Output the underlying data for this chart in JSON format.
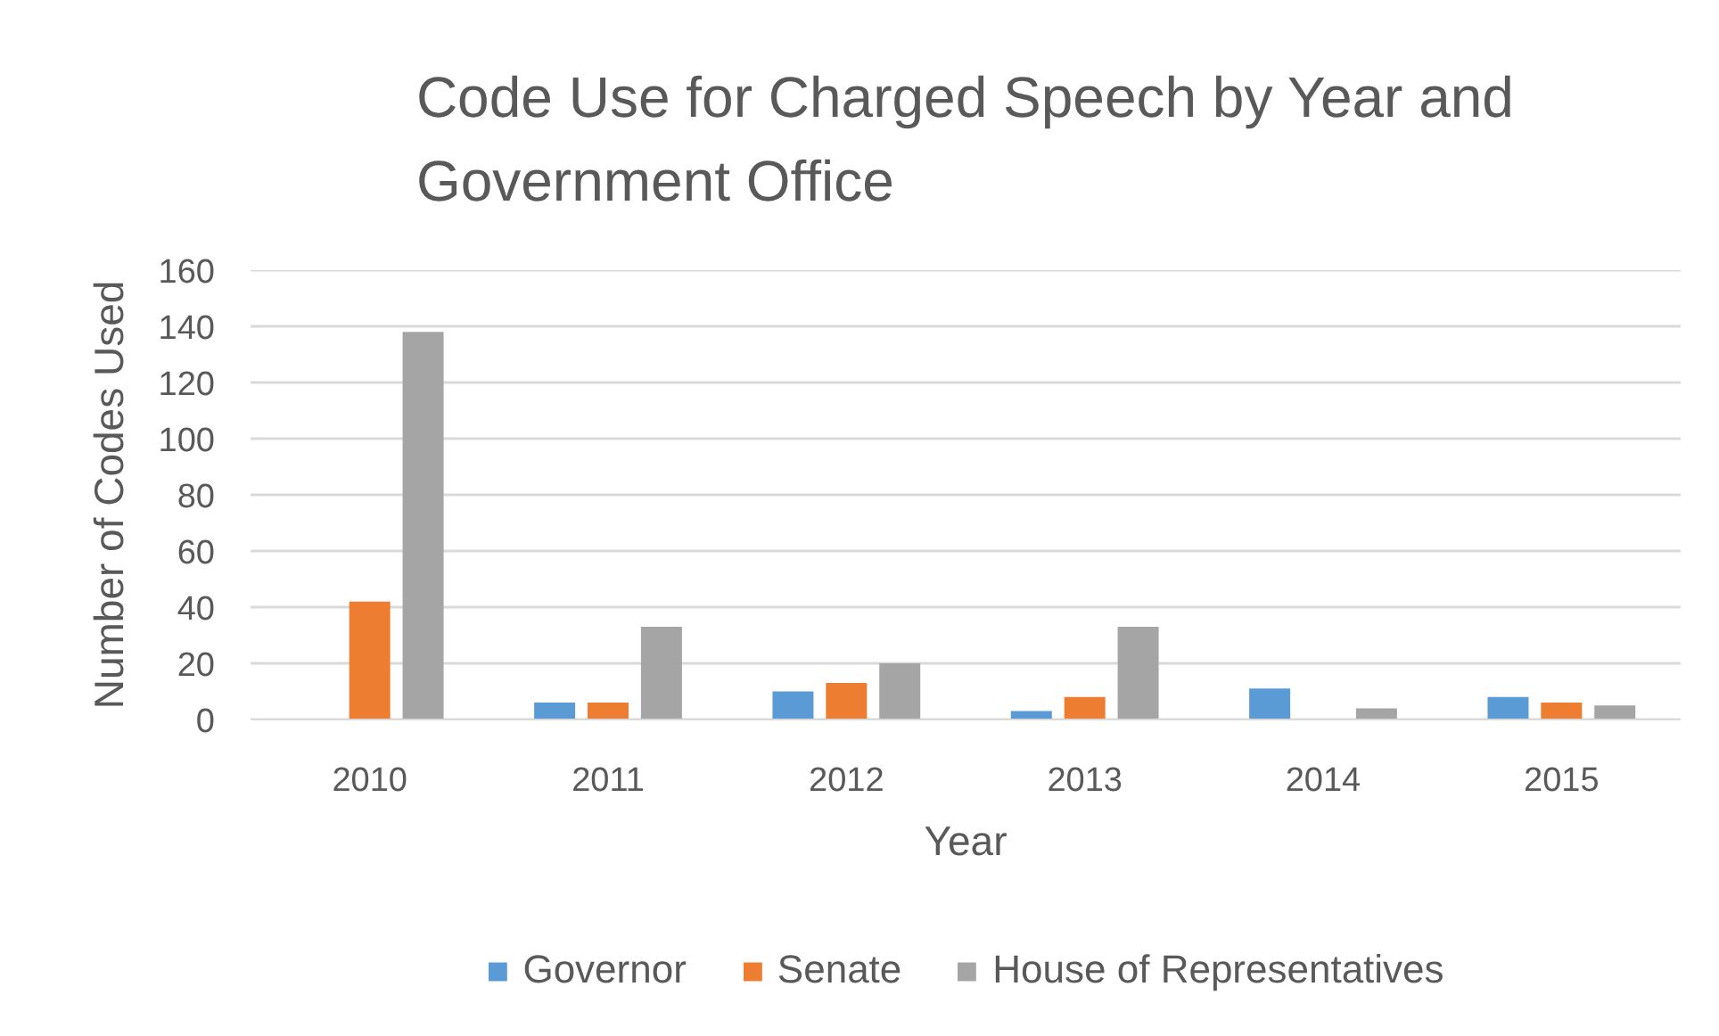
{
  "chart_data": {
    "type": "bar",
    "title": "Code Use for Charged Speech by Year and Government Office",
    "xlabel": "Year",
    "ylabel": "Number of Codes Used",
    "categories": [
      "2010",
      "2011",
      "2012",
      "2013",
      "2014",
      "2015"
    ],
    "series": [
      {
        "name": "Governor",
        "color": "#5b9bd5",
        "values": [
          null,
          6,
          10,
          3,
          11,
          8
        ]
      },
      {
        "name": "Senate",
        "color": "#ed7d31",
        "values": [
          42,
          6,
          13,
          8,
          null,
          6
        ]
      },
      {
        "name": "House of Representatives",
        "color": "#a5a5a5",
        "values": [
          138,
          33,
          20,
          33,
          4,
          5
        ]
      }
    ],
    "ylim": [
      0,
      160
    ],
    "yticks": [
      0,
      20,
      40,
      60,
      80,
      100,
      120,
      140,
      160
    ],
    "grid": "y",
    "legend": "bottom"
  }
}
